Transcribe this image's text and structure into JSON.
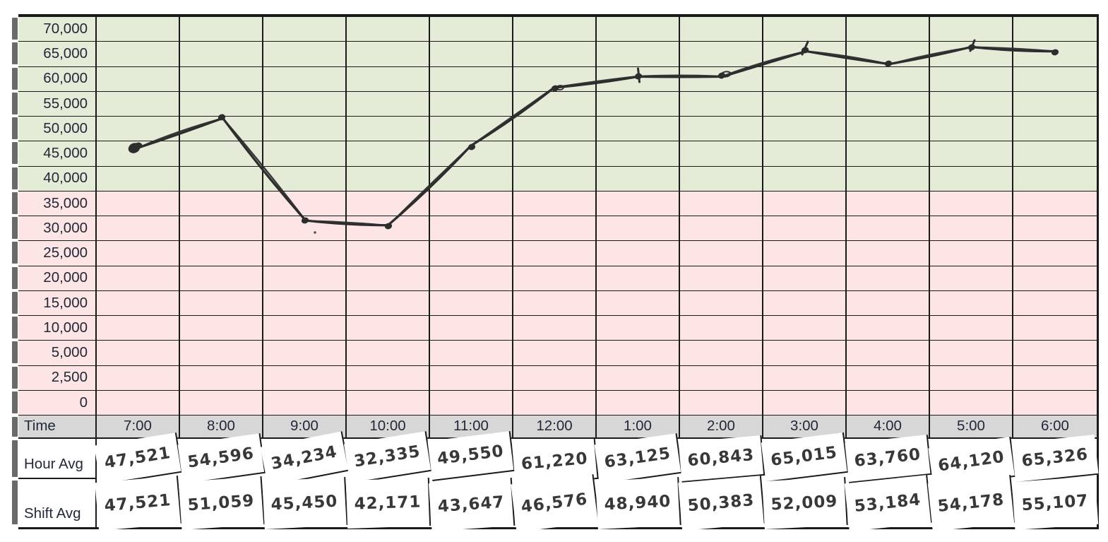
{
  "chart_data": {
    "type": "line",
    "title": "",
    "style": "hand-drawn marker line plotted over a colored spreadsheet grid",
    "categories": [
      "7:00",
      "8:00",
      "9:00",
      "10:00",
      "11:00",
      "12:00",
      "1:00",
      "2:00",
      "3:00",
      "4:00",
      "5:00",
      "6:00"
    ],
    "series": [
      {
        "name": "Hour Avg",
        "values": [
          47521,
          54596,
          34234,
          32335,
          49550,
          61220,
          63125,
          60843,
          65015,
          63760,
          64120,
          65326
        ]
      },
      {
        "name": "Shift Avg",
        "values": [
          47521,
          51059,
          45450,
          42171,
          43647,
          46576,
          48940,
          50383,
          52009,
          53184,
          54178,
          55107
        ]
      }
    ],
    "plotted_series": "Hour Avg",
    "y_tick_labels": [
      "70,000",
      "65,000",
      "60,000",
      "55,000",
      "50,000",
      "45,000",
      "40,000",
      "35,000",
      "30,000",
      "25,000",
      "20,000",
      "15,000",
      "10,000",
      "5,000",
      "2,500",
      "0"
    ],
    "y_tick_values": [
      70000,
      65000,
      60000,
      55000,
      50000,
      45000,
      40000,
      35000,
      30000,
      25000,
      20000,
      15000,
      10000,
      5000,
      2500,
      0
    ],
    "ylim": [
      0,
      70000
    ],
    "grid": true,
    "legend": false,
    "zones": [
      {
        "range": "40,000 and above",
        "color": "#e4ecd8"
      },
      {
        "range": "below 40,000",
        "color": "#fce5e4"
      }
    ]
  },
  "table": {
    "header_label": "Time",
    "times": [
      "7:00",
      "8:00",
      "9:00",
      "10:00",
      "11:00",
      "12:00",
      "1:00",
      "2:00",
      "3:00",
      "4:00",
      "5:00",
      "6:00"
    ],
    "row_labels": [
      "Hour Avg",
      "Shift Avg"
    ],
    "hour_avg": [
      "47,521",
      "54,596",
      "34,234",
      "32,335",
      "49,550",
      "61,220",
      "63,125",
      "60,843",
      "65,015",
      "63,760",
      "64,120",
      "65,326"
    ],
    "shift_avg": [
      "47,521",
      "51,059",
      "45,450",
      "42,171",
      "43,647",
      "46,576",
      "48,940",
      "50,383",
      "52,009",
      "53,184",
      "54,178",
      "55,107"
    ]
  },
  "colors": {
    "zone_green": "#e4ecd8",
    "zone_pink": "#fce5e4",
    "header_gray": "#d7d7d7",
    "grid_line": "#1a1a1a",
    "ink": "#2d2d2d",
    "text": "#222838"
  }
}
